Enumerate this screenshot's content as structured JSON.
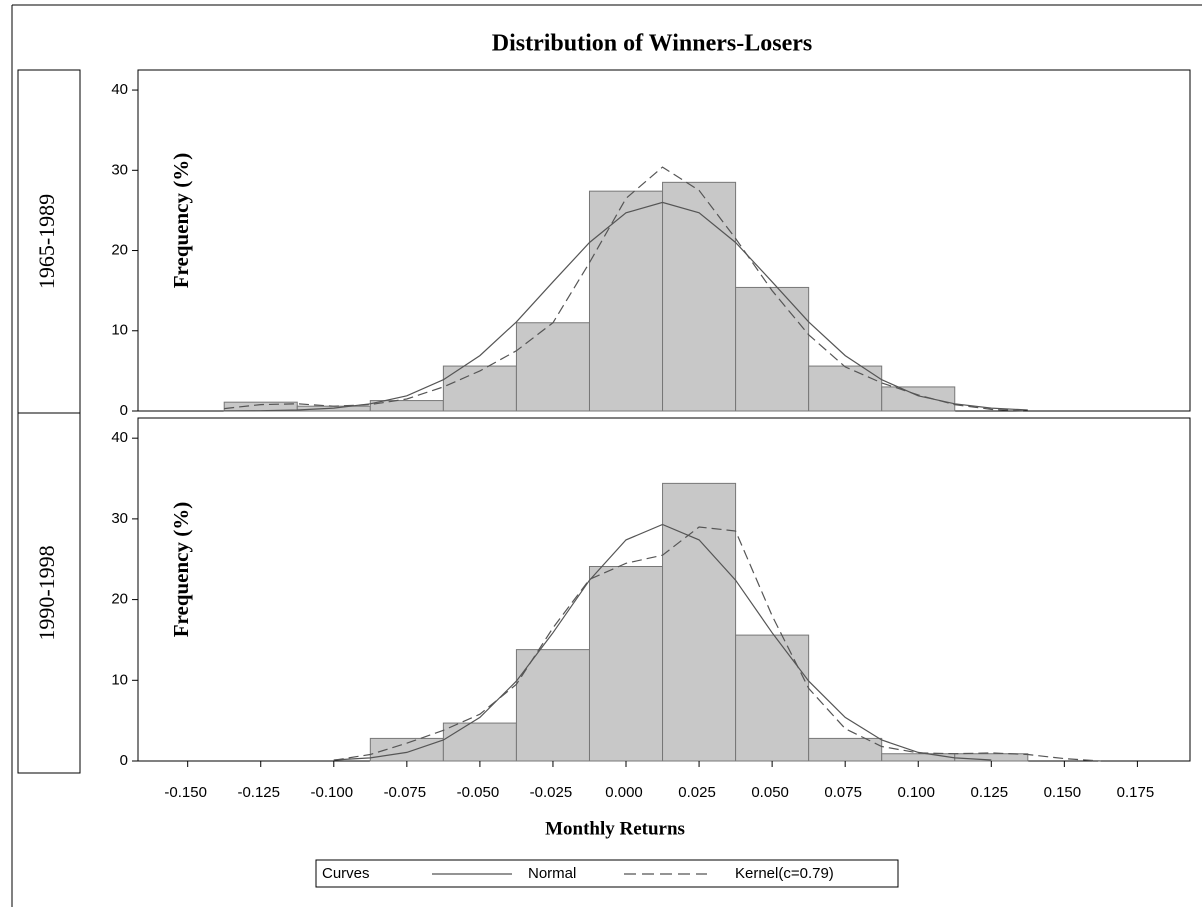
{
  "title": "Distribution of Winners-Losers",
  "xlabel": "Monthly Returns",
  "legend_title": "Curves",
  "chart_data": [
    {
      "type": "histogram",
      "panel_label": "1965-1989",
      "ylabel": "Frequency (%)",
      "color": "#c8c8c8",
      "bins": [
        -0.1375,
        -0.1125,
        -0.0875,
        -0.0625,
        -0.0375,
        -0.0125,
        0.0125,
        0.0375,
        0.0625,
        0.0875,
        0.1125
      ],
      "values": [
        1.1,
        0.6,
        1.3,
        5.6,
        11.0,
        27.4,
        28.5,
        15.4,
        5.6,
        3.0
      ],
      "xlim": [
        -0.167,
        0.193
      ],
      "ylim": [
        0,
        42.5
      ],
      "yticks": [
        0,
        10,
        20,
        30,
        40
      ],
      "series": [
        {
          "name": "Normal",
          "color": "#555555",
          "dash": false,
          "x": [
            -0.1375,
            -0.125,
            -0.1125,
            -0.1,
            -0.0875,
            -0.075,
            -0.0625,
            -0.05,
            -0.0375,
            -0.025,
            -0.0125,
            0,
            0.0125,
            0.025,
            0.0375,
            0.05,
            0.0625,
            0.075,
            0.0875,
            0.1,
            0.1125,
            0.125,
            0.1375
          ],
          "values": [
            0.01,
            0.04,
            0.13,
            0.36,
            0.9,
            1.9,
            3.9,
            6.9,
            11.1,
            16.1,
            21.0,
            24.7,
            26.0,
            24.7,
            21.0,
            16.1,
            11.1,
            6.9,
            3.9,
            1.9,
            0.9,
            0.36,
            0.13
          ]
        },
        {
          "name": "Kernel(c=0.79)",
          "color": "#555555",
          "dash": true,
          "x": [
            -0.1375,
            -0.125,
            -0.1125,
            -0.1,
            -0.0875,
            -0.075,
            -0.0625,
            -0.05,
            -0.0375,
            -0.025,
            -0.0125,
            0,
            0.0125,
            0.025,
            0.0375,
            0.05,
            0.0625,
            0.075,
            0.0875,
            0.1,
            0.1125,
            0.125,
            0.1375
          ],
          "values": [
            0.3,
            0.8,
            0.9,
            0.6,
            0.8,
            1.5,
            3.0,
            5.0,
            7.5,
            11.0,
            18.5,
            26.5,
            30.4,
            27.5,
            21.5,
            15.0,
            9.5,
            5.5,
            3.5,
            2.0,
            0.8,
            0.2,
            0.0
          ]
        }
      ]
    },
    {
      "type": "histogram",
      "panel_label": "1990-1998",
      "ylabel": "Frequency (%)",
      "color": "#c8c8c8",
      "bins": [
        -0.0875,
        -0.0625,
        -0.0375,
        -0.0125,
        0.0125,
        0.0375,
        0.0625,
        0.0875,
        0.1125,
        0.1375
      ],
      "values": [
        2.8,
        4.7,
        13.8,
        24.1,
        34.4,
        15.6,
        2.8,
        0.9,
        0.9
      ],
      "xlim": [
        -0.167,
        0.193
      ],
      "ylim": [
        0,
        42.5
      ],
      "yticks": [
        0,
        10,
        20,
        30,
        40
      ],
      "xticks": [
        {
          "value": -0.15,
          "label": "-0.150"
        },
        {
          "value": -0.125,
          "label": "-0.125"
        },
        {
          "value": -0.1,
          "label": "-0.100"
        },
        {
          "value": -0.075,
          "label": "-0.075"
        },
        {
          "value": -0.05,
          "label": "-0.050"
        },
        {
          "value": -0.025,
          "label": "-0.025"
        },
        {
          "value": 0,
          "label": "0.000"
        },
        {
          "value": 0.025,
          "label": "0.025"
        },
        {
          "value": 0.05,
          "label": "0.050"
        },
        {
          "value": 0.075,
          "label": "0.075"
        },
        {
          "value": 0.1,
          "label": "0.100"
        },
        {
          "value": 0.125,
          "label": "0.125"
        },
        {
          "value": 0.15,
          "label": "0.150"
        },
        {
          "value": 0.175,
          "label": "0.175"
        }
      ],
      "series": [
        {
          "name": "Normal",
          "color": "#555555",
          "dash": false,
          "x": [
            -0.1,
            -0.0875,
            -0.075,
            -0.0625,
            -0.05,
            -0.0375,
            -0.025,
            -0.0125,
            0,
            0.0125,
            0.025,
            0.0375,
            0.05,
            0.0625,
            0.075,
            0.0875,
            0.1,
            0.1125,
            0.125
          ],
          "values": [
            0.12,
            0.39,
            1.07,
            2.6,
            5.4,
            9.9,
            15.9,
            22.4,
            27.4,
            29.3,
            27.4,
            22.4,
            15.9,
            9.9,
            5.4,
            2.6,
            1.07,
            0.39,
            0.12
          ]
        },
        {
          "name": "Kernel(c=0.79)",
          "color": "#555555",
          "dash": true,
          "x": [
            -0.1,
            -0.0875,
            -0.075,
            -0.0625,
            -0.05,
            -0.0375,
            -0.025,
            -0.0125,
            0,
            0.0125,
            0.025,
            0.0375,
            0.05,
            0.0625,
            0.075,
            0.0875,
            0.1,
            0.1125,
            0.125,
            0.1375,
            0.15,
            0.1625
          ],
          "values": [
            0.1,
            0.8,
            2.2,
            3.8,
            5.8,
            9.5,
            16.5,
            22.5,
            24.5,
            25.5,
            29.0,
            28.5,
            18.0,
            9.0,
            4.0,
            1.8,
            1.0,
            0.9,
            1.0,
            0.8,
            0.3,
            0.0
          ]
        }
      ]
    }
  ]
}
